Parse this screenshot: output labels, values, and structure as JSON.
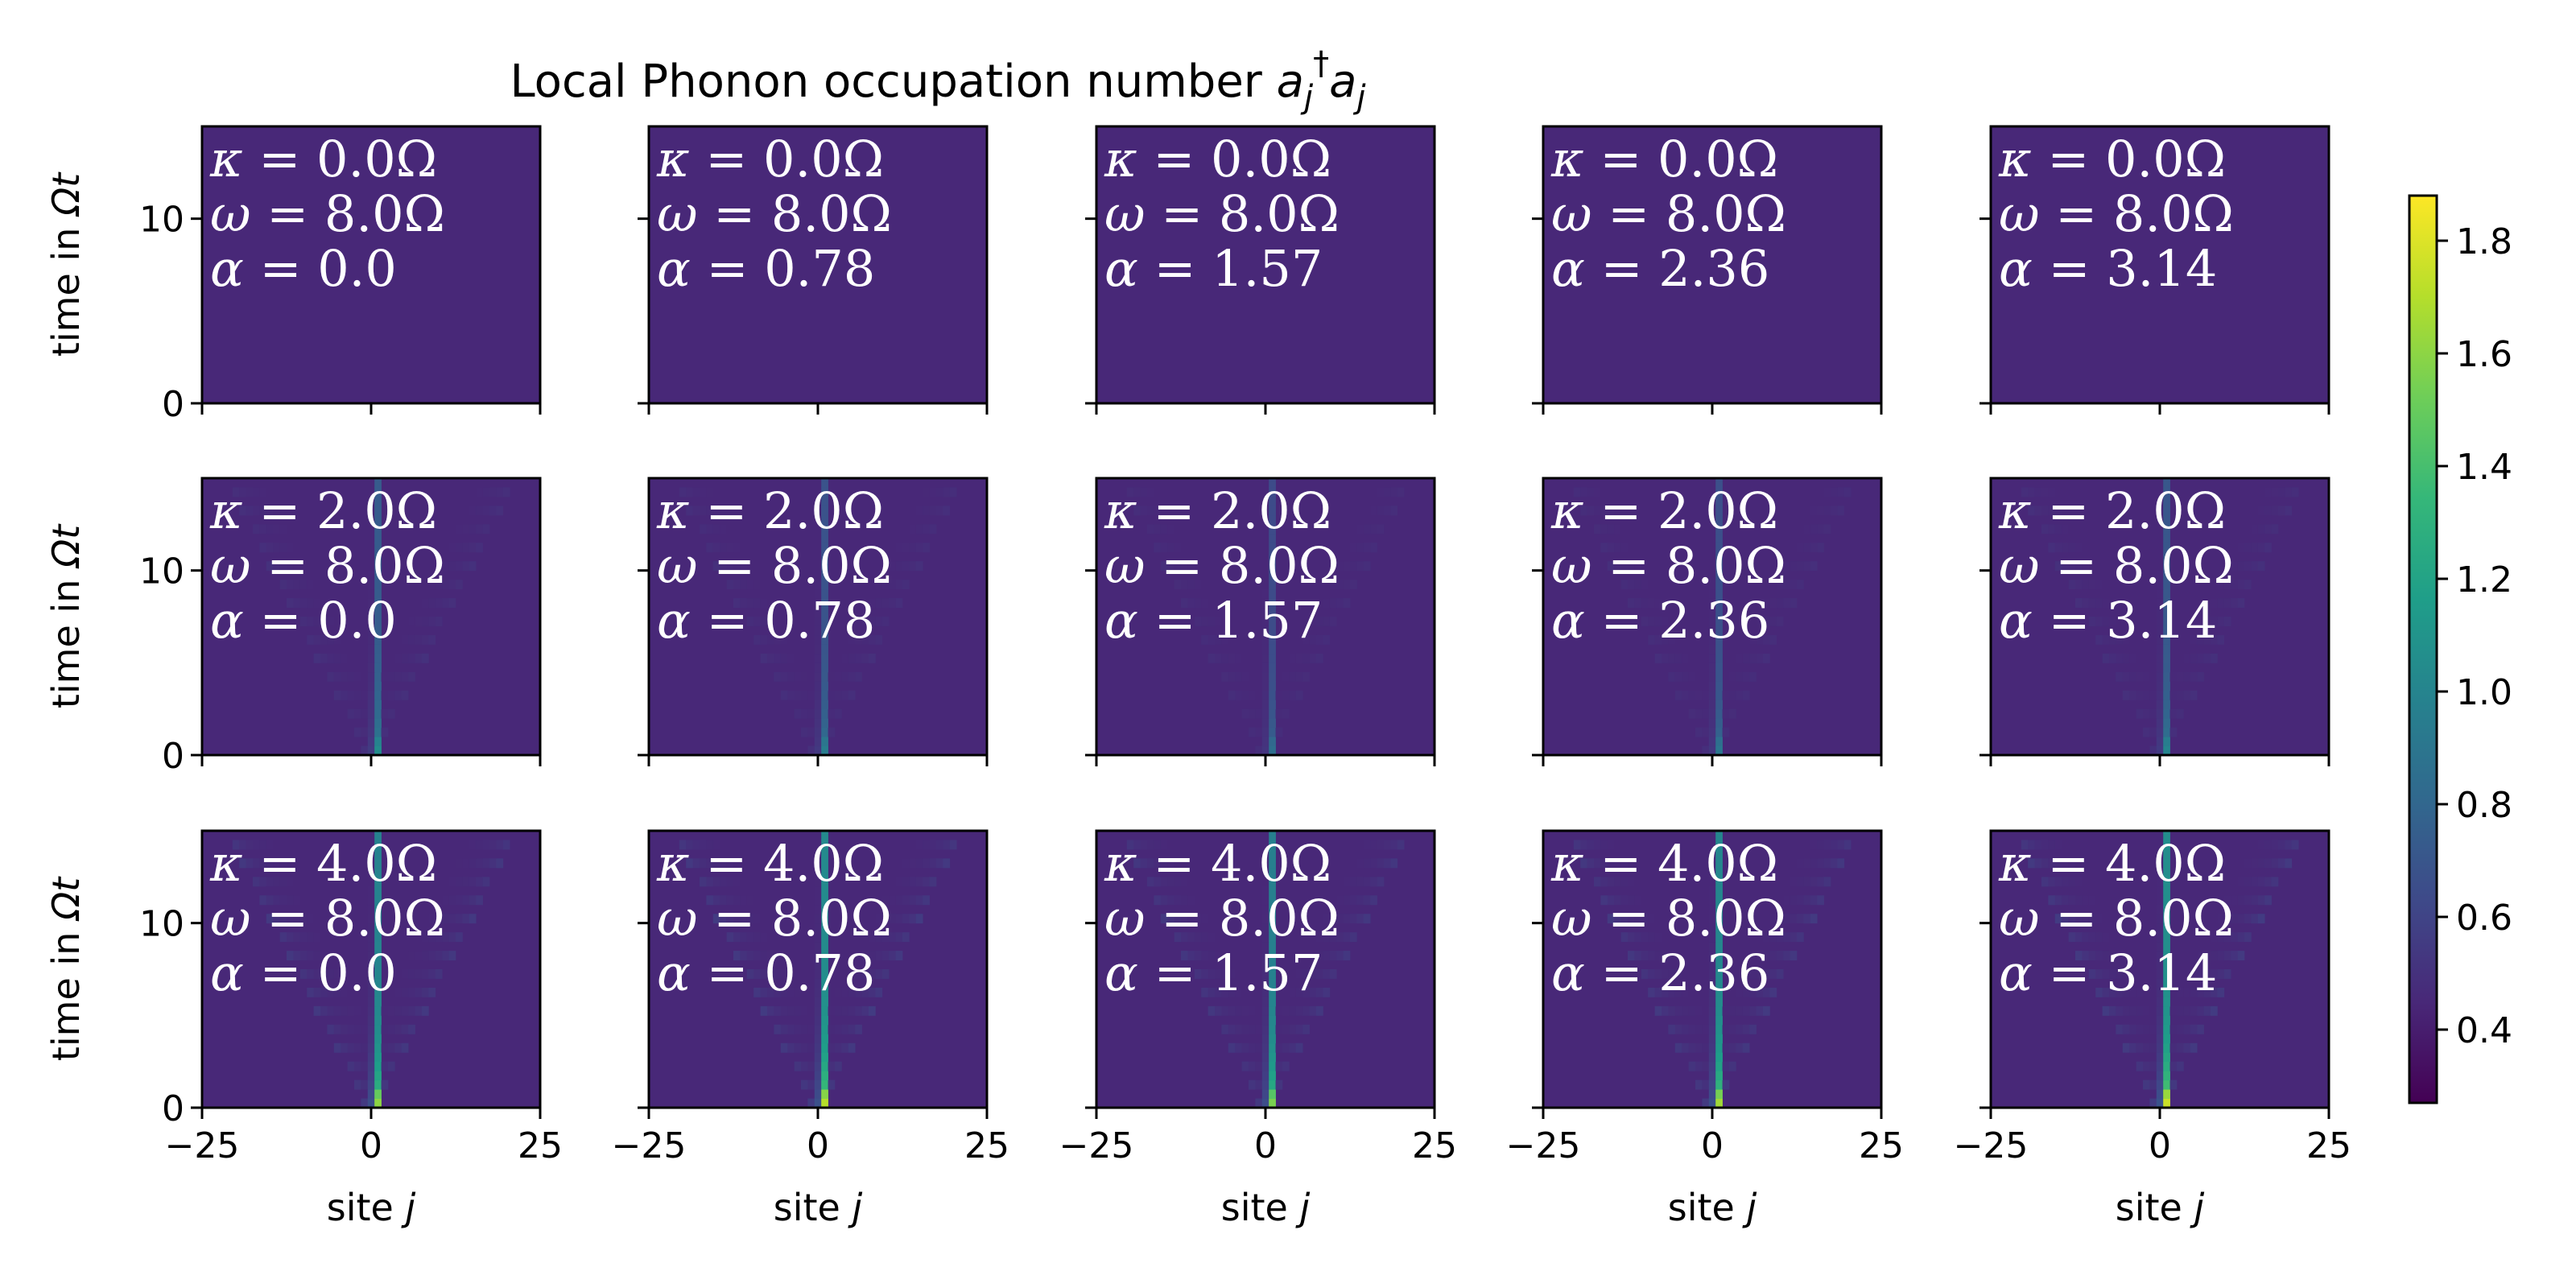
{
  "chart_data": {
    "type": "heatmap",
    "title_prefix": "Local Phonon occupation number ",
    "title_math": {
      "a": "a",
      "j": "j",
      "dagger": "†"
    },
    "rows": [
      {
        "kappa": "0.0",
        "ylabel_prefix": "time in ",
        "ylabel_math": "Ωt"
      },
      {
        "kappa": "2.0",
        "ylabel_prefix": "time in ",
        "ylabel_math": "Ωt"
      },
      {
        "kappa": "4.0",
        "ylabel_prefix": "time in ",
        "ylabel_math": "Ωt"
      }
    ],
    "columns": [
      {
        "alpha": "0.0",
        "xlabel_prefix": "site ",
        "xlabel_math": "j"
      },
      {
        "alpha": "0.78",
        "xlabel_prefix": "site ",
        "xlabel_math": "j"
      },
      {
        "alpha": "1.57",
        "xlabel_prefix": "site ",
        "xlabel_math": "j"
      },
      {
        "alpha": "2.36",
        "xlabel_prefix": "site ",
        "xlabel_math": "j"
      },
      {
        "alpha": "3.14",
        "xlabel_prefix": "site ",
        "xlabel_math": "j"
      }
    ],
    "omega": "8.0",
    "anno_symbols": {
      "kappa": "κ",
      "omega": "ω",
      "alpha": "α",
      "unit": "Ω"
    },
    "x_range": [
      -25,
      25
    ],
    "x_ticks": [
      -25,
      0,
      25
    ],
    "x_tick_labels": [
      "−25",
      "0",
      "25"
    ],
    "y_range": [
      0,
      15
    ],
    "y_ticks": [
      0,
      10
    ],
    "y_tick_labels": [
      "0",
      "10"
    ],
    "background_value": 0.45,
    "colorbar": {
      "colormap": "viridis",
      "range": [
        0.27,
        1.88
      ],
      "ticks": [
        0.4,
        0.6,
        0.8,
        1.0,
        1.2,
        1.4,
        1.6,
        1.8
      ],
      "tick_labels": [
        "0.4",
        "0.6",
        "0.8",
        "1.0",
        "1.2",
        "1.4",
        "1.6",
        "1.8"
      ]
    },
    "panel_peaks": [
      [
        0.45,
        0.45,
        0.45,
        0.45,
        0.45
      ],
      [
        1.05,
        0.95,
        0.85,
        0.9,
        1.0
      ],
      [
        1.6,
        1.7,
        1.55,
        1.65,
        1.75
      ]
    ],
    "colors": {
      "viridis_stops": [
        "#440154",
        "#482878",
        "#3e4989",
        "#31688e",
        "#26828e",
        "#1f9e89",
        "#35b779",
        "#6ece58",
        "#b5de2b",
        "#fde725"
      ]
    }
  }
}
